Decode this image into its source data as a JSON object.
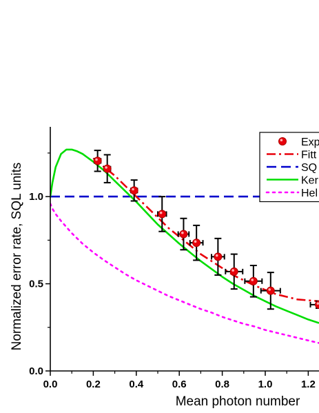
{
  "chart_data": {
    "type": "scatter",
    "title": "",
    "xlabel": "Mean photon number",
    "ylabel": "Normalized error rate, SQL units",
    "xlim": [
      0.0,
      1.25
    ],
    "ylim": [
      0.0,
      1.4
    ],
    "x_ticks": [
      "0.0",
      "0.2",
      "0.4",
      "0.6",
      "0.8",
      "1.0",
      "1.2"
    ],
    "y_ticks": [
      "0.0",
      "0.5",
      "1.0"
    ],
    "grid": false,
    "legend_position": "top-right",
    "series": [
      {
        "name": "Exp",
        "kind": "points-with-errorbars",
        "color": "#e8000b",
        "points": [
          {
            "x": 0.22,
            "y": 1.205,
            "xerr": 0.015,
            "yerr": 0.06
          },
          {
            "x": 0.265,
            "y": 1.16,
            "xerr": 0.015,
            "yerr": 0.08
          },
          {
            "x": 0.39,
            "y": 1.035,
            "xerr": 0.015,
            "yerr": 0.06
          },
          {
            "x": 0.52,
            "y": 0.9,
            "xerr": 0.02,
            "yerr": 0.1
          },
          {
            "x": 0.62,
            "y": 0.785,
            "xerr": 0.025,
            "yerr": 0.09
          },
          {
            "x": 0.68,
            "y": 0.735,
            "xerr": 0.03,
            "yerr": 0.1
          },
          {
            "x": 0.78,
            "y": 0.655,
            "xerr": 0.03,
            "yerr": 0.105
          },
          {
            "x": 0.855,
            "y": 0.57,
            "xerr": 0.04,
            "yerr": 0.1
          },
          {
            "x": 0.945,
            "y": 0.515,
            "xerr": 0.04,
            "yerr": 0.09
          },
          {
            "x": 1.025,
            "y": 0.46,
            "xerr": 0.045,
            "yerr": 0.105
          },
          {
            "x": 1.25,
            "y": 0.38,
            "xerr": 0.04,
            "yerr": 0.02
          }
        ]
      },
      {
        "name": "Fitt",
        "kind": "line",
        "style": "dashdot",
        "color": "#e8000b",
        "x": [
          0.2,
          0.25,
          0.3,
          0.35,
          0.4,
          0.45,
          0.5,
          0.55,
          0.6,
          0.65,
          0.7,
          0.75,
          0.8,
          0.85,
          0.9,
          0.95,
          1.0,
          1.05,
          1.1,
          1.15,
          1.2,
          1.25
        ],
        "y": [
          1.22,
          1.17,
          1.12,
          1.06,
          1.0,
          0.94,
          0.88,
          0.82,
          0.77,
          0.72,
          0.67,
          0.63,
          0.59,
          0.55,
          0.52,
          0.49,
          0.465,
          0.44,
          0.425,
          0.41,
          0.405,
          0.4
        ]
      },
      {
        "name": "SQ",
        "kind": "line",
        "style": "dashed",
        "color": "#0000cc",
        "x": [
          0.0,
          1.25
        ],
        "y": [
          1.0,
          1.0
        ]
      },
      {
        "name": "Ker",
        "kind": "line",
        "style": "solid",
        "color": "#00dd00",
        "x": [
          0.0,
          0.01,
          0.025,
          0.05,
          0.075,
          0.1,
          0.125,
          0.15,
          0.2,
          0.25,
          0.3,
          0.35,
          0.4,
          0.45,
          0.5,
          0.55,
          0.6,
          0.65,
          0.7,
          0.75,
          0.8,
          0.85,
          0.9,
          0.95,
          1.0,
          1.05,
          1.1,
          1.15,
          1.2,
          1.25
        ],
        "y": [
          1.0,
          1.08,
          1.17,
          1.245,
          1.27,
          1.27,
          1.26,
          1.245,
          1.2,
          1.15,
          1.09,
          1.03,
          0.97,
          0.905,
          0.84,
          0.785,
          0.73,
          0.68,
          0.63,
          0.585,
          0.54,
          0.5,
          0.465,
          0.43,
          0.4,
          0.37,
          0.345,
          0.32,
          0.295,
          0.275
        ]
      },
      {
        "name": "Hel",
        "kind": "line",
        "style": "dotted",
        "color": "#ff00ff",
        "x": [
          0.0,
          0.01,
          0.025,
          0.05,
          0.1,
          0.15,
          0.2,
          0.25,
          0.3,
          0.35,
          0.4,
          0.45,
          0.5,
          0.55,
          0.6,
          0.65,
          0.7,
          0.75,
          0.8,
          0.85,
          0.9,
          0.95,
          1.0,
          1.05,
          1.1,
          1.15,
          1.2,
          1.25
        ],
        "y": [
          0.96,
          0.93,
          0.9,
          0.86,
          0.79,
          0.73,
          0.68,
          0.635,
          0.595,
          0.555,
          0.52,
          0.49,
          0.46,
          0.43,
          0.405,
          0.38,
          0.355,
          0.335,
          0.31,
          0.29,
          0.27,
          0.255,
          0.235,
          0.22,
          0.205,
          0.19,
          0.175,
          0.16
        ]
      }
    ]
  }
}
